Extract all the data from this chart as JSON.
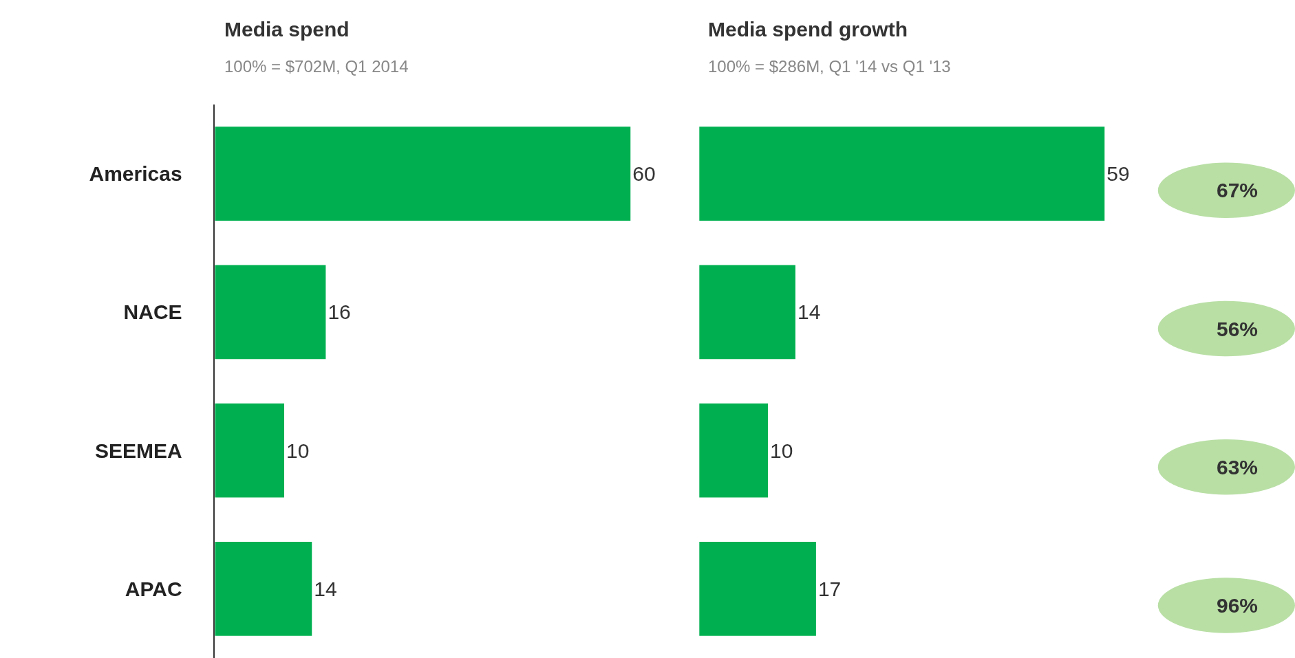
{
  "chart_data": [
    {
      "type": "bar",
      "orientation": "horizontal",
      "title": "Media spend",
      "subtitle": "100% = $702M, Q1 2014",
      "categories": [
        "Americas",
        "NACE",
        "SEEMEA",
        "APAC"
      ],
      "values": [
        60,
        16,
        10,
        14
      ],
      "color": "#00b050",
      "data_labels": true,
      "tick_labels": "y"
    },
    {
      "type": "bar",
      "orientation": "horizontal",
      "title": "Media spend growth",
      "subtitle": "100% = $286M, Q1 '14 vs Q1 '13",
      "categories": [
        null,
        null,
        null,
        null
      ],
      "values": [
        59,
        14,
        10,
        17
      ],
      "color": "#00b050",
      "data_labels": true,
      "tick_labels": false,
      "annotations": [
        "67%",
        "56%",
        "63%",
        "96%"
      ]
    }
  ]
}
